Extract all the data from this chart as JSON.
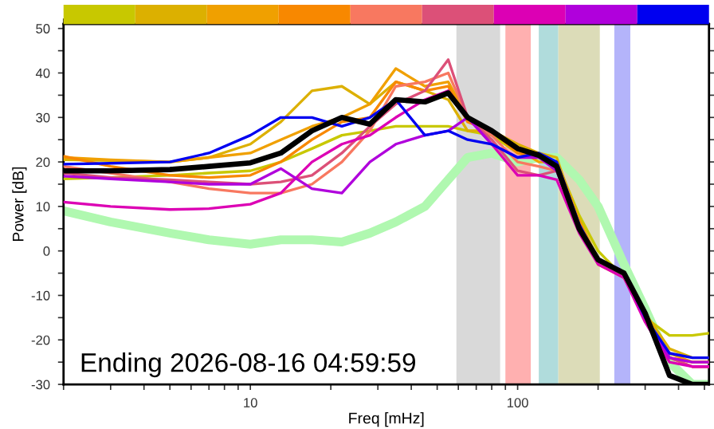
{
  "chart_data": {
    "type": "line",
    "xlabel": "Freq [mHz]",
    "ylabel": "Power [dB]",
    "log": "x",
    "xlim": [
      2,
      520
    ],
    "ylim": [
      -30,
      51
    ],
    "xticks": [
      {
        "value": 2,
        "label": null
      },
      {
        "value": 3,
        "label": null
      },
      {
        "value": 4,
        "label": null
      },
      {
        "value": 5,
        "label": null
      },
      {
        "value": 6,
        "label": null
      },
      {
        "value": 7,
        "label": null
      },
      {
        "value": 8,
        "label": null
      },
      {
        "value": 9,
        "label": null
      },
      10,
      {
        "value": 20,
        "label": null
      },
      {
        "value": 30,
        "label": null
      },
      {
        "value": 40,
        "label": null
      },
      {
        "value": 50,
        "label": null
      },
      {
        "value": 60,
        "label": null
      },
      {
        "value": 70,
        "label": null
      },
      {
        "value": 80,
        "label": null
      },
      {
        "value": 90,
        "label": null
      },
      100,
      {
        "value": 200,
        "label": null
      },
      {
        "value": 300,
        "label": null
      },
      {
        "value": 400,
        "label": null
      },
      {
        "value": 500,
        "label": null
      }
    ],
    "yticks": [
      -30,
      {
        "value": -25,
        "label": null
      },
      -20,
      {
        "value": -15,
        "label": null
      },
      -10,
      {
        "value": -5,
        "label": null
      },
      0,
      {
        "value": 5,
        "label": null
      },
      10,
      {
        "value": 15,
        "label": null
      },
      20,
      {
        "value": 25,
        "label": null
      },
      30,
      {
        "value": 35,
        "label": null
      },
      40,
      {
        "value": 45,
        "label": null
      },
      50
    ],
    "x": [
      2,
      3,
      5,
      7,
      10,
      13,
      17,
      22,
      28,
      35,
      45,
      55,
      65,
      80,
      100,
      120,
      140,
      170,
      200,
      250,
      300,
      370,
      450,
      520
    ],
    "bands": [
      {
        "axis": "x",
        "from": 59,
        "to": 86,
        "color": "#d9d9d9"
      },
      {
        "axis": "x",
        "from": 90,
        "to": 112,
        "color": "#ffb0b0"
      },
      {
        "axis": "x",
        "from": 120,
        "to": 142,
        "color": "#b0dcdc"
      },
      {
        "axis": "x",
        "from": 142,
        "to": 203,
        "color": "#dcdcb8"
      },
      {
        "axis": "x",
        "from": 230,
        "to": 264,
        "color": "#b4b4fa"
      }
    ],
    "series": [
      {
        "color": "#b0f8b0",
        "values": [
          9,
          6.5,
          4,
          2.5,
          1.5,
          2.5,
          2.5,
          2,
          4,
          6.5,
          10,
          16,
          21,
          22,
          20,
          21,
          21,
          16,
          10,
          -3,
          -13,
          -25,
          -30,
          -30
        ]
      },
      {
        "color": "#c8c800",
        "values": [
          16.2,
          16.5,
          17,
          17.5,
          18,
          20,
          23,
          26,
          27,
          28,
          28,
          28,
          27,
          26,
          22,
          21,
          20,
          8,
          0,
          -6,
          -15,
          -19,
          -19,
          -18.5
        ]
      },
      {
        "color": "#dcb000",
        "values": [
          20.5,
          20.3,
          20,
          21,
          24,
          29,
          36,
          37,
          33,
          38,
          36,
          34,
          27,
          27,
          24,
          22,
          21,
          6,
          -2,
          -5,
          -14,
          -22,
          -24,
          -24
        ]
      },
      {
        "color": "#f0a000",
        "values": [
          21,
          20.5,
          20,
          21,
          22,
          25,
          28,
          30,
          33,
          41,
          37,
          38,
          30,
          27,
          23,
          20,
          20,
          7,
          -2,
          -5,
          -15,
          -23,
          -25,
          -25
        ]
      },
      {
        "color": "#f88800",
        "values": [
          21.3,
          19,
          17,
          16.5,
          17,
          20,
          25,
          29,
          30,
          38,
          36,
          37,
          29,
          27,
          22,
          21,
          19,
          6,
          -3,
          -6,
          -15,
          -24,
          -25,
          -25
        ]
      },
      {
        "color": "#f87860",
        "values": [
          19,
          17.5,
          15.5,
          14,
          13,
          13,
          15,
          20,
          27,
          37,
          38,
          40,
          30,
          26,
          20,
          19,
          18,
          5,
          -2,
          -5,
          -15,
          -24,
          -26,
          -26
        ]
      },
      {
        "color": "#dc5078",
        "values": [
          17.5,
          16.5,
          16,
          15.5,
          15,
          15.5,
          17,
          22,
          28,
          33,
          36,
          43,
          30,
          25,
          18,
          17,
          18,
          5,
          -2,
          -5,
          -15,
          -24,
          -26,
          -26
        ]
      },
      {
        "color": "#dc00b4",
        "values": [
          11,
          10,
          9.3,
          9.5,
          10.5,
          13,
          20,
          24,
          26,
          30,
          34,
          36,
          30,
          24,
          17,
          17,
          16,
          4,
          -3,
          -6,
          -16,
          -25,
          -26,
          -26
        ]
      },
      {
        "color": "#b000dc",
        "values": [
          16.8,
          16.2,
          15.5,
          15,
          15,
          18.5,
          14,
          13,
          20,
          24,
          26,
          27,
          30,
          24,
          21,
          21,
          18,
          5,
          -2,
          -5,
          -15,
          -24,
          -25,
          -25
        ]
      },
      {
        "color": "#0000f0",
        "values": [
          19.5,
          19.7,
          20,
          22,
          26,
          30,
          30,
          28,
          30,
          34,
          26,
          27,
          25,
          24,
          21,
          22,
          20,
          6,
          -2,
          -5,
          -15,
          -23,
          -24,
          -24
        ]
      },
      {
        "color": "#000000",
        "values": [
          18,
          18,
          18.3,
          19,
          19.8,
          22,
          27,
          30,
          28.5,
          34,
          33.5,
          35.5,
          30,
          27,
          23,
          21.5,
          19,
          5,
          -2,
          -5,
          -14,
          -28,
          -30,
          -30
        ]
      }
    ],
    "annotations": [
      "Ending 2026-08-16 04:59:59"
    ]
  }
}
